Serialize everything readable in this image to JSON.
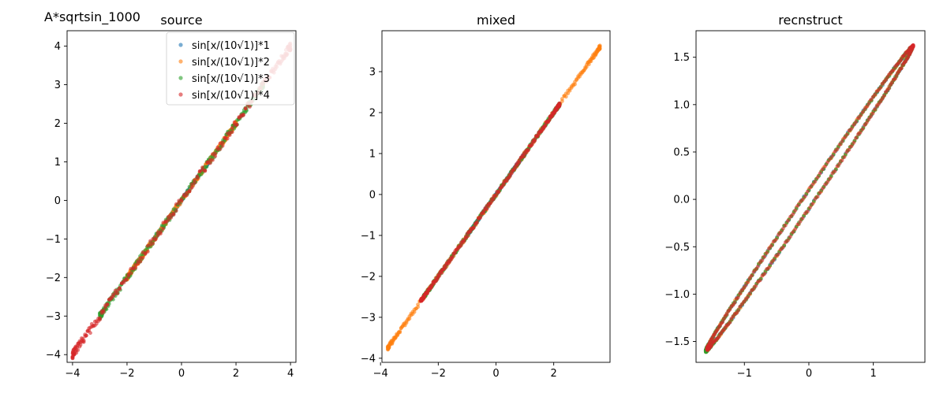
{
  "figure": {
    "suptitle": "A*sqrtsin_1000"
  },
  "chart_data": [
    {
      "type": "scatter",
      "title": "source",
      "xlabel": "",
      "ylabel": "",
      "xlim": [
        -4.2,
        4.2
      ],
      "ylim": [
        -4.2,
        4.4
      ],
      "xticks": [
        -4,
        -2,
        0,
        2,
        4
      ],
      "yticks": [
        -4,
        -3,
        -2,
        -1,
        0,
        1,
        2,
        3,
        4
      ],
      "legend": "top-right",
      "series": [
        {
          "name": "sin[x/(10√1)]*1",
          "color": "#1f77b4",
          "amp": 1,
          "x_range": [
            -1.0,
            1.0
          ],
          "width": 0.06
        },
        {
          "name": "sin[x/(10√1)]*2",
          "color": "#ff7f0e",
          "amp": 2,
          "x_range": [
            -2.0,
            2.0
          ],
          "width": 0.12
        },
        {
          "name": "sin[x/(10√1)]*3",
          "color": "#2ca02c",
          "amp": 3,
          "x_range": [
            -3.0,
            3.0
          ],
          "width": 0.16
        },
        {
          "name": "sin[x/(10√1)]*4",
          "color": "#d62728",
          "amp": 4,
          "x_range": [
            -4.0,
            4.0
          ],
          "width": 0.2
        }
      ]
    },
    {
      "type": "scatter",
      "title": "mixed",
      "xlabel": "",
      "ylabel": "",
      "xlim": [
        -3.95,
        3.95
      ],
      "ylim": [
        -4.1,
        4.0
      ],
      "xticks": [
        -4,
        -2,
        0,
        2
      ],
      "yticks": [
        -4,
        -3,
        -2,
        -1,
        0,
        1,
        2,
        3
      ],
      "series": [
        {
          "color": "#1f77b4",
          "x_range": [
            -1.0,
            1.0
          ],
          "width": 0.05
        },
        {
          "color": "#ff7f0e",
          "x_range": [
            -3.75,
            3.6
          ],
          "width": 0.1
        },
        {
          "color": "#2ca02c",
          "x_range": [
            -2.5,
            2.2
          ],
          "width": 0.08
        },
        {
          "color": "#d62728",
          "x_range": [
            -2.6,
            2.2
          ],
          "width": 0.08
        }
      ]
    },
    {
      "type": "scatter",
      "title": "recnstruct",
      "xlabel": "",
      "ylabel": "",
      "xlim": [
        -1.75,
        1.8
      ],
      "ylim": [
        -1.72,
        1.78
      ],
      "xticks": [
        -1,
        0,
        1
      ],
      "yticks": [
        -1.5,
        -1.0,
        -0.5,
        0.0,
        0.5,
        1.0,
        1.5
      ],
      "series": [
        {
          "color": "#1f77b4",
          "x_range": [
            -1.6,
            1.6
          ],
          "loop": 0.1
        },
        {
          "color": "#ff7f0e",
          "x_range": [
            -1.6,
            1.6
          ],
          "loop": 0.1
        },
        {
          "color": "#2ca02c",
          "x_range": [
            -1.6,
            1.6
          ],
          "loop": 0.1
        },
        {
          "color": "#d62728",
          "x_range": [
            -1.58,
            1.62
          ],
          "loop": 0.1
        }
      ]
    }
  ]
}
